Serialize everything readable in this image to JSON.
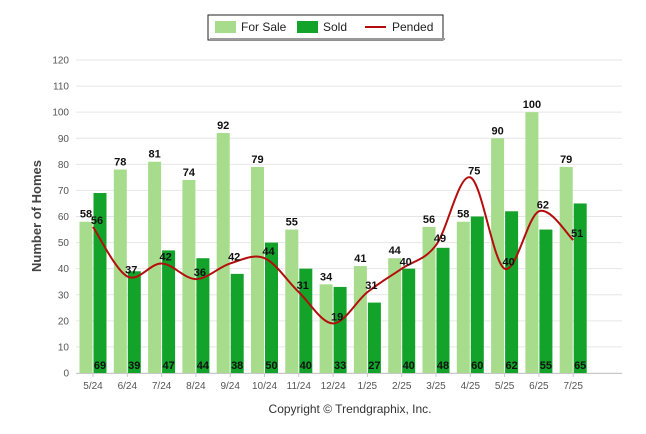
{
  "chart_data": {
    "type": "bar",
    "ylabel": "Number of Homes",
    "ylim": [
      0,
      120
    ],
    "yticks": [
      0,
      10,
      20,
      30,
      40,
      50,
      60,
      70,
      80,
      90,
      100,
      110,
      120
    ],
    "categories": [
      "5/24",
      "6/24",
      "7/24",
      "8/24",
      "9/24",
      "10/24",
      "11/24",
      "12/24",
      "1/25",
      "2/25",
      "3/25",
      "4/25",
      "5/25",
      "6/25",
      "7/25"
    ],
    "series": [
      {
        "name": "For Sale",
        "kind": "bar",
        "color": "#a6dc8c",
        "values": [
          58,
          78,
          81,
          74,
          92,
          79,
          55,
          34,
          41,
          44,
          56,
          58,
          90,
          100,
          79
        ]
      },
      {
        "name": "Sold",
        "kind": "bar",
        "color": "#13a32a",
        "values": [
          69,
          39,
          47,
          44,
          38,
          50,
          40,
          33,
          27,
          40,
          48,
          60,
          62,
          55,
          65
        ]
      },
      {
        "name": "Pended",
        "kind": "line",
        "color": "#b40d0d",
        "values": [
          56,
          37,
          42,
          36,
          42,
          44,
          31,
          19,
          31,
          40,
          49,
          75,
          40,
          62,
          51
        ]
      }
    ],
    "legend_position": "top-center",
    "grid": true,
    "credit": "Copyright © Trendgraphix, Inc."
  }
}
